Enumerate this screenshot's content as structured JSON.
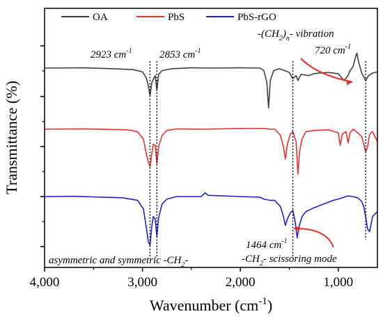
{
  "chart_data": {
    "type": "line",
    "title": "",
    "xlabel": "Wavenumber (cm",
    "xlabel_sup": "-1",
    "xlabel_close": ")",
    "ylabel": "Transmittance (%)",
    "xlim": [
      4000,
      600
    ],
    "x_reversed": true,
    "y_ticks_labeled": false,
    "x_ticks": [
      4000,
      3000,
      2000,
      1000
    ],
    "x_tick_labels": [
      "4,000",
      "3,000",
      "2,000",
      "1,000"
    ],
    "legend_position": "top",
    "series": [
      {
        "name": "OA",
        "color": "#3f3f3f",
        "level": 3,
        "points": [
          [
            4000,
            0.0
          ],
          [
            3600,
            0.02
          ],
          [
            3300,
            -0.05
          ],
          [
            3100,
            -0.12
          ],
          [
            3000,
            -0.3
          ],
          [
            2960,
            -0.8
          ],
          [
            2940,
            -1.4
          ],
          [
            2923,
            -2.2
          ],
          [
            2905,
            -1.2
          ],
          [
            2890,
            -0.9
          ],
          [
            2870,
            -0.6
          ],
          [
            2853,
            -1.8
          ],
          [
            2835,
            -0.5
          ],
          [
            2800,
            -0.2
          ],
          [
            2700,
            -0.05
          ],
          [
            2500,
            0.02
          ],
          [
            2300,
            0.0
          ],
          [
            2000,
            0.02
          ],
          [
            1800,
            0.0
          ],
          [
            1760,
            -0.2
          ],
          [
            1730,
            -1.1
          ],
          [
            1712,
            -3.2
          ],
          [
            1695,
            -1.0
          ],
          [
            1660,
            -0.2
          ],
          [
            1600,
            -0.05
          ],
          [
            1500,
            -0.35
          ],
          [
            1464,
            -0.85
          ],
          [
            1430,
            -0.6
          ],
          [
            1412,
            -1.0
          ],
          [
            1380,
            -0.5
          ],
          [
            1300,
            -0.6
          ],
          [
            1250,
            -0.45
          ],
          [
            1200,
            -0.4
          ],
          [
            1100,
            -0.35
          ],
          [
            1000,
            -0.45
          ],
          [
            940,
            -1.0
          ],
          [
            900,
            -0.6
          ],
          [
            880,
            -0.2
          ],
          [
            850,
            0.1
          ],
          [
            830,
            0.7
          ],
          [
            810,
            1.2
          ],
          [
            790,
            0.4
          ],
          [
            760,
            -0.4
          ],
          [
            720,
            -1.0
          ],
          [
            690,
            -0.6
          ],
          [
            650,
            -0.4
          ],
          [
            600,
            -0.3
          ]
        ]
      },
      {
        "name": "PbS",
        "color": "#e8302a",
        "level": 2,
        "points": [
          [
            4000,
            0.0
          ],
          [
            3600,
            0.02
          ],
          [
            3300,
            -0.02
          ],
          [
            3150,
            -0.05
          ],
          [
            3050,
            -0.2
          ],
          [
            2990,
            -0.8
          ],
          [
            2960,
            -2.0
          ],
          [
            2940,
            -2.6
          ],
          [
            2923,
            -3.0
          ],
          [
            2905,
            -2.0
          ],
          [
            2890,
            -1.2
          ],
          [
            2870,
            -1.3
          ],
          [
            2853,
            -2.8
          ],
          [
            2835,
            -1.4
          ],
          [
            2800,
            -0.5
          ],
          [
            2750,
            -0.1
          ],
          [
            2650,
            0.02
          ],
          [
            2400,
            0.0
          ],
          [
            2000,
            0.05
          ],
          [
            1800,
            0.05
          ],
          [
            1750,
            0.05
          ],
          [
            1700,
            0.0
          ],
          [
            1650,
            0.0
          ],
          [
            1590,
            -0.5
          ],
          [
            1560,
            -1.4
          ],
          [
            1540,
            -2.4
          ],
          [
            1520,
            -1.2
          ],
          [
            1490,
            -0.4
          ],
          [
            1464,
            -0.2
          ],
          [
            1430,
            -1.0
          ],
          [
            1412,
            -3.6
          ],
          [
            1395,
            -1.8
          ],
          [
            1370,
            -0.8
          ],
          [
            1330,
            -0.2
          ],
          [
            1250,
            -0.1
          ],
          [
            1100,
            -0.05
          ],
          [
            1000,
            -0.3
          ],
          [
            980,
            -1.3
          ],
          [
            960,
            -0.4
          ],
          [
            920,
            -0.2
          ],
          [
            900,
            -1.1
          ],
          [
            880,
            -0.3
          ],
          [
            850,
            0.0
          ],
          [
            800,
            -0.3
          ],
          [
            760,
            -0.6
          ],
          [
            720,
            -1.8
          ],
          [
            700,
            -1.4
          ],
          [
            680,
            -0.4
          ],
          [
            650,
            -0.2
          ],
          [
            600,
            -1.0
          ]
        ]
      },
      {
        "name": "PbS-rGO",
        "color": "#1f1fd6",
        "level": 1,
        "points": [
          [
            4000,
            0.0
          ],
          [
            3700,
            0.02
          ],
          [
            3400,
            -0.05
          ],
          [
            3200,
            -0.1
          ],
          [
            3050,
            -0.3
          ],
          [
            2990,
            -1.0
          ],
          [
            2960,
            -2.5
          ],
          [
            2940,
            -3.6
          ],
          [
            2923,
            -3.9
          ],
          [
            2905,
            -2.4
          ],
          [
            2890,
            -1.6
          ],
          [
            2870,
            -1.8
          ],
          [
            2853,
            -3.2
          ],
          [
            2835,
            -1.7
          ],
          [
            2800,
            -0.6
          ],
          [
            2750,
            -0.2
          ],
          [
            2650,
            0.0
          ],
          [
            2400,
            0.0
          ],
          [
            2360,
            0.3
          ],
          [
            2330,
            0.1
          ],
          [
            2000,
            0.0
          ],
          [
            1800,
            -0.05
          ],
          [
            1760,
            -0.2
          ],
          [
            1700,
            -0.3
          ],
          [
            1650,
            -0.3
          ],
          [
            1590,
            -0.8
          ],
          [
            1560,
            -1.6
          ],
          [
            1540,
            -2.3
          ],
          [
            1520,
            -1.8
          ],
          [
            1490,
            -1.3
          ],
          [
            1464,
            -1.1
          ],
          [
            1440,
            -2.0
          ],
          [
            1420,
            -3.3
          ],
          [
            1400,
            -2.4
          ],
          [
            1370,
            -1.6
          ],
          [
            1330,
            -1.2
          ],
          [
            1250,
            -0.9
          ],
          [
            1150,
            -0.6
          ],
          [
            1050,
            -0.3
          ],
          [
            1000,
            -0.2
          ],
          [
            940,
            -0.05
          ],
          [
            900,
            0.05
          ],
          [
            850,
            0.0
          ],
          [
            800,
            -0.1
          ],
          [
            760,
            -0.4
          ],
          [
            740,
            -0.8
          ],
          [
            720,
            -1.6
          ],
          [
            700,
            -2.6
          ],
          [
            680,
            -2.8
          ],
          [
            650,
            -1.6
          ],
          [
            600,
            -1.2
          ]
        ]
      }
    ],
    "reference_lines": [
      2923,
      2853,
      1464,
      720
    ],
    "annotations": {
      "peak_2923": "2923 cm",
      "peak_2853": "2853 cm",
      "peak_720": "720 cm",
      "peak_1464": "1464 cm",
      "unit_sup": "-1",
      "ch2n_prefix": "-(CH",
      "ch2n_sub2": "2",
      "ch2n_close": ")",
      "ch2n_subn": "n",
      "ch2n_suffix": "- vibration",
      "asym_prefix": "asymmetric and symmetric -CH",
      "asym_sub": "2",
      "asym_suffix": "-",
      "sciss_prefix": "-CH",
      "sciss_sub": "2",
      "sciss_suffix": "- scissoring mode"
    }
  }
}
